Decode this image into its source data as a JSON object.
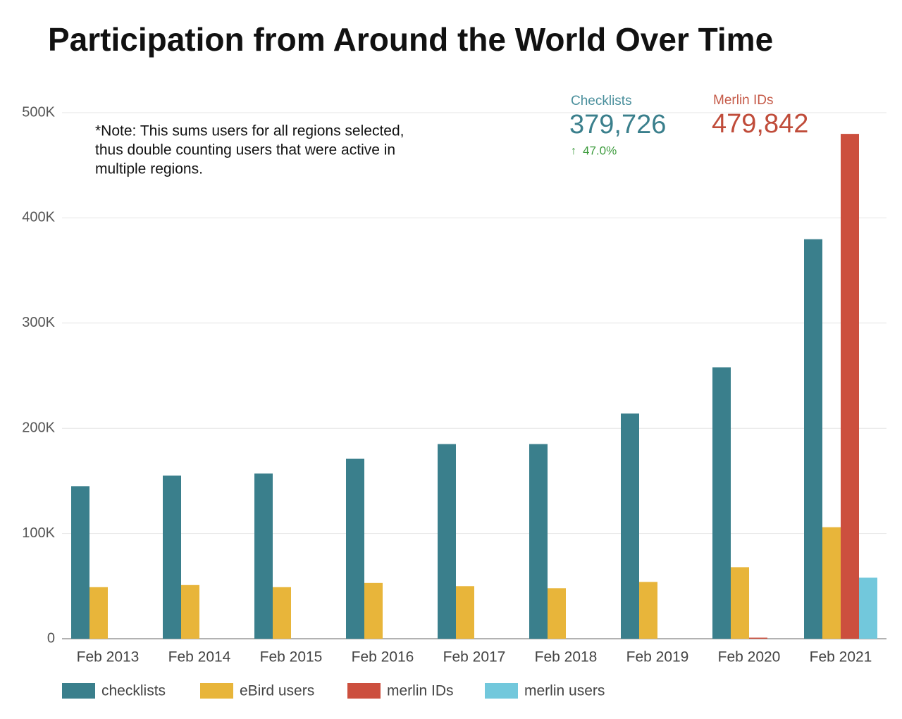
{
  "chart_data": {
    "type": "bar",
    "title": "Participation from Around the World Over Time",
    "annotations": [
      "*Note: This sums users for all regions selected,",
      "thus double counting users that were active in",
      "multiple regions."
    ],
    "kpis": [
      {
        "label": "Checklists",
        "value": "379,726",
        "change": "47.0%",
        "color": "#4a8f9c"
      },
      {
        "label": "Merlin IDs",
        "value": "479,842",
        "color": "#c55a48"
      }
    ],
    "categories": [
      "Feb 2013",
      "Feb 2014",
      "Feb 2015",
      "Feb 2016",
      "Feb 2017",
      "Feb 2018",
      "Feb 2019",
      "Feb 2020",
      "Feb 2021"
    ],
    "series": [
      {
        "name": "checklists",
        "color": "#3a7f8c",
        "values": [
          145000,
          155000,
          157000,
          171000,
          185000,
          185000,
          214000,
          258000,
          379726
        ]
      },
      {
        "name": "eBird users",
        "color": "#e8b53a",
        "values": [
          49000,
          51000,
          49000,
          53000,
          50000,
          48000,
          54000,
          68000,
          106000
        ]
      },
      {
        "name": "merlin IDs",
        "color": "#cc4f3e",
        "values": [
          0,
          0,
          0,
          0,
          0,
          0,
          0,
          1000,
          479842
        ]
      },
      {
        "name": "merlin users",
        "color": "#72c8dc",
        "values": [
          0,
          0,
          0,
          0,
          0,
          0,
          0,
          0,
          58000
        ]
      }
    ],
    "ylim": [
      0,
      500000
    ],
    "yticks": [
      0,
      {
        "value": 100000,
        "label": "100K"
      },
      {
        "value": 200000,
        "label": "200K"
      },
      {
        "value": 300000,
        "label": "300K"
      },
      {
        "value": 400000,
        "label": "400K"
      },
      {
        "value": 500000,
        "label": "500K"
      }
    ],
    "grid": true
  }
}
